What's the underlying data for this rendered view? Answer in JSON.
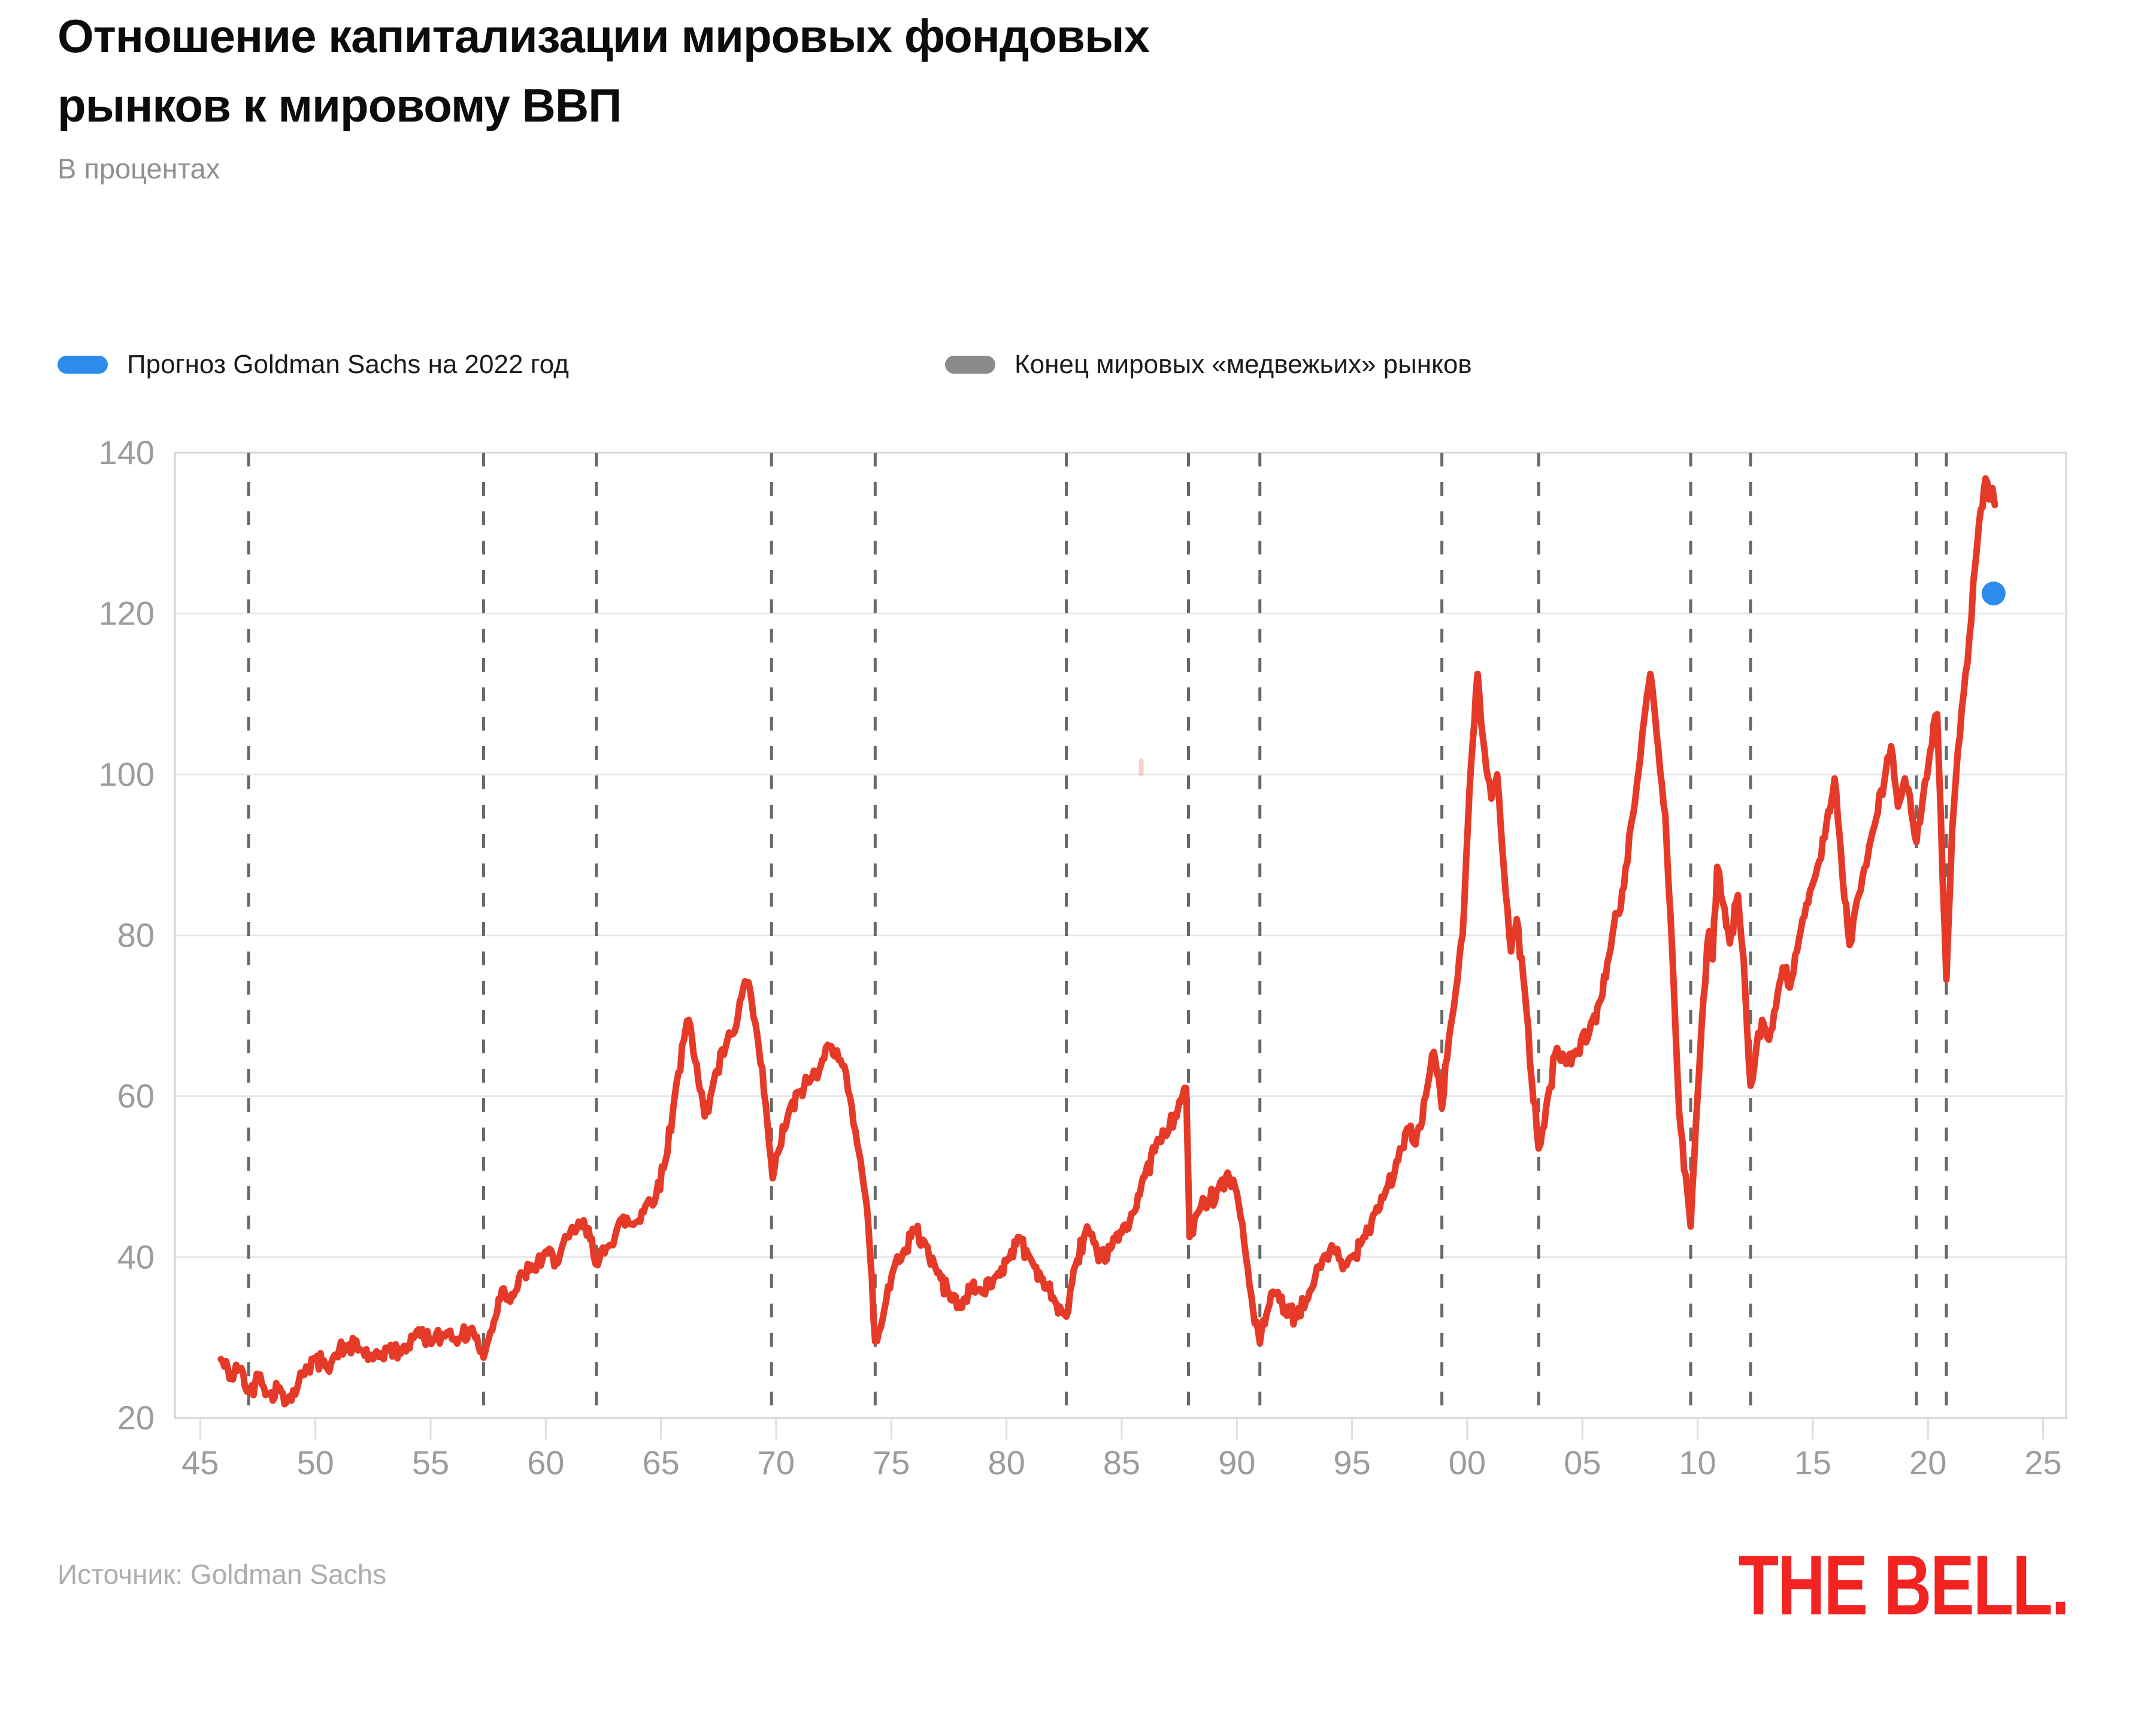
{
  "page": {
    "title_line1": "Отношение капитализации мировых фондовых",
    "title_line2": "рынков к мировому ВВП",
    "subtitle": "В процентах",
    "source": "Источник: Goldman Sachs",
    "logo_text": "THE BELL."
  },
  "legend": {
    "forecast": {
      "label": "Прогноз Goldman Sachs на 2022 год",
      "color": "#2d8ceb"
    },
    "bear": {
      "label": "Конец мировых «медвежьих» рынков",
      "color": "#8b8b8b"
    }
  },
  "colors": {
    "line": "#e63a29",
    "dot": "#2d8ceb",
    "dashed": "#696969",
    "grid": "#e8e8e8",
    "border": "#d6d6d6",
    "tick": "#dedede",
    "axis_text": "#9c9c9c",
    "title": "#0c0c0c",
    "subtitle": "#909090",
    "legend_text": "#1b1b1b",
    "source": "#adadad",
    "logo": "#f32322",
    "stray_mark": "#f3a9a2"
  },
  "chart_data": {
    "type": "line",
    "title": "Отношение капитализации мировых фондовых рынков к мировому ВВП",
    "units": "проценты",
    "grid": "horizontal only",
    "legend_position": "top",
    "y_ticks": [
      20,
      40,
      60,
      80,
      100,
      120,
      140
    ],
    "y_domain": [
      20,
      140
    ],
    "x_tick_years": [
      1945,
      1950,
      1955,
      1960,
      1965,
      1970,
      1975,
      1980,
      1985,
      1990,
      1995,
      2000,
      2005,
      2010,
      2015,
      2020,
      2025
    ],
    "x_tick_labels": [
      "45",
      "50",
      "55",
      "60",
      "65",
      "70",
      "75",
      "80",
      "85",
      "90",
      "95",
      "00",
      "05",
      "10",
      "15",
      "20",
      "25"
    ],
    "x_domain_years": [
      1943.9,
      2026.0
    ],
    "series_name": "Капитализация мировых фондовых рынков к мировому ВВП, %",
    "points": [
      [
        1945.9,
        27.3
      ],
      [
        1946.35,
        24.9
      ],
      [
        1946.7,
        26.2
      ],
      [
        1947.1,
        23.2
      ],
      [
        1947.6,
        25.4
      ],
      [
        1948.0,
        23.0
      ],
      [
        1948.45,
        23.8
      ],
      [
        1948.8,
        22.3
      ],
      [
        1949.2,
        23.6
      ],
      [
        1949.6,
        26.4
      ],
      [
        1950.0,
        27.3
      ],
      [
        1950.45,
        26.4
      ],
      [
        1950.9,
        27.9
      ],
      [
        1951.4,
        28.9
      ],
      [
        1952.0,
        28.4
      ],
      [
        1952.5,
        27.3
      ],
      [
        1953.2,
        28.7
      ],
      [
        1953.7,
        28.0
      ],
      [
        1954.4,
        30.8
      ],
      [
        1955.1,
        29.5
      ],
      [
        1955.7,
        30.6
      ],
      [
        1956.3,
        30.0
      ],
      [
        1956.8,
        31.2
      ],
      [
        1957.3,
        27.5
      ],
      [
        1957.75,
        32.0
      ],
      [
        1958.1,
        36.0
      ],
      [
        1958.6,
        35.2
      ],
      [
        1959.0,
        38.0
      ],
      [
        1959.5,
        38.4
      ],
      [
        1960.0,
        40.7
      ],
      [
        1960.45,
        39.2
      ],
      [
        1961.0,
        42.5
      ],
      [
        1961.5,
        44.2
      ],
      [
        1962.0,
        42.3
      ],
      [
        1962.25,
        39.0
      ],
      [
        1962.7,
        41.3
      ],
      [
        1963.3,
        44.8
      ],
      [
        1963.8,
        44.0
      ],
      [
        1964.4,
        46.7
      ],
      [
        1964.8,
        47.8
      ],
      [
        1965.2,
        52.0
      ],
      [
        1965.6,
        60.0
      ],
      [
        1966.0,
        67.0
      ],
      [
        1966.2,
        69.5
      ],
      [
        1966.55,
        64.0
      ],
      [
        1966.9,
        57.5
      ],
      [
        1967.3,
        62.0
      ],
      [
        1967.8,
        66.0
      ],
      [
        1968.2,
        68.0
      ],
      [
        1968.65,
        74.3
      ],
      [
        1968.95,
        71.5
      ],
      [
        1969.25,
        66.0
      ],
      [
        1969.55,
        59.0
      ],
      [
        1969.85,
        49.8
      ],
      [
        1970.15,
        53.5
      ],
      [
        1970.5,
        57.5
      ],
      [
        1971.0,
        60.5
      ],
      [
        1971.5,
        62.0
      ],
      [
        1972.0,
        64.5
      ],
      [
        1972.4,
        66.2
      ],
      [
        1972.8,
        64.5
      ],
      [
        1973.2,
        60.0
      ],
      [
        1973.6,
        53.0
      ],
      [
        1973.95,
        46.0
      ],
      [
        1974.3,
        29.5
      ],
      [
        1974.7,
        33.5
      ],
      [
        1975.1,
        38.5
      ],
      [
        1975.5,
        40.5
      ],
      [
        1976.0,
        43.5
      ],
      [
        1976.5,
        41.5
      ],
      [
        1977.0,
        38.0
      ],
      [
        1977.5,
        35.5
      ],
      [
        1978.0,
        33.7
      ],
      [
        1978.5,
        36.5
      ],
      [
        1979.0,
        35.5
      ],
      [
        1979.5,
        37.5
      ],
      [
        1980.0,
        39.5
      ],
      [
        1980.5,
        42.5
      ],
      [
        1981.0,
        40.0
      ],
      [
        1981.5,
        37.5
      ],
      [
        1982.1,
        34.5
      ],
      [
        1982.6,
        32.6
      ],
      [
        1983.0,
        39.0
      ],
      [
        1983.5,
        43.8
      ],
      [
        1984.0,
        39.5
      ],
      [
        1984.5,
        41.0
      ],
      [
        1985.0,
        43.0
      ],
      [
        1985.5,
        45.5
      ],
      [
        1986.0,
        50.0
      ],
      [
        1986.5,
        54.0
      ],
      [
        1987.0,
        55.5
      ],
      [
        1987.45,
        58.5
      ],
      [
        1987.8,
        61.0
      ],
      [
        1987.95,
        42.5
      ],
      [
        1988.3,
        45.5
      ],
      [
        1988.75,
        47.0
      ],
      [
        1989.2,
        48.5
      ],
      [
        1989.6,
        50.5
      ],
      [
        1990.0,
        48.0
      ],
      [
        1990.4,
        40.0
      ],
      [
        1990.7,
        33.5
      ],
      [
        1991.0,
        29.3
      ],
      [
        1991.35,
        33.5
      ],
      [
        1991.7,
        35.5
      ],
      [
        1992.1,
        33.0
      ],
      [
        1992.6,
        32.5
      ],
      [
        1993.0,
        34.5
      ],
      [
        1993.4,
        37.5
      ],
      [
        1993.8,
        40.2
      ],
      [
        1994.2,
        41.0
      ],
      [
        1994.6,
        38.5
      ],
      [
        1995.0,
        40.0
      ],
      [
        1995.5,
        42.5
      ],
      [
        1996.0,
        45.5
      ],
      [
        1996.5,
        48.5
      ],
      [
        1997.0,
        52.0
      ],
      [
        1997.4,
        56.0
      ],
      [
        1997.75,
        54.0
      ],
      [
        1998.2,
        60.0
      ],
      [
        1998.55,
        65.5
      ],
      [
        1998.9,
        58.5
      ],
      [
        1999.2,
        67.0
      ],
      [
        1999.5,
        73.0
      ],
      [
        1999.8,
        80.0
      ],
      [
        2000.1,
        98.0
      ],
      [
        2000.45,
        112.5
      ],
      [
        2000.75,
        103.0
      ],
      [
        2001.05,
        97.0
      ],
      [
        2001.3,
        100.0
      ],
      [
        2001.6,
        88.0
      ],
      [
        2001.9,
        78.0
      ],
      [
        2002.15,
        82.0
      ],
      [
        2002.5,
        73.0
      ],
      [
        2002.8,
        62.0
      ],
      [
        2003.1,
        53.5
      ],
      [
        2003.5,
        60.0
      ],
      [
        2003.9,
        66.0
      ],
      [
        2004.3,
        64.0
      ],
      [
        2004.8,
        65.5
      ],
      [
        2005.3,
        68.0
      ],
      [
        2005.8,
        72.0
      ],
      [
        2006.3,
        80.0
      ],
      [
        2006.8,
        86.0
      ],
      [
        2007.2,
        95.0
      ],
      [
        2007.6,
        105.0
      ],
      [
        2007.95,
        112.5
      ],
      [
        2008.3,
        103.0
      ],
      [
        2008.6,
        95.0
      ],
      [
        2008.9,
        78.0
      ],
      [
        2009.2,
        58.0
      ],
      [
        2009.7,
        43.8
      ],
      [
        2010.0,
        60.0
      ],
      [
        2010.25,
        72.0
      ],
      [
        2010.5,
        80.5
      ],
      [
        2010.65,
        77.0
      ],
      [
        2010.85,
        88.5
      ],
      [
        2011.1,
        84.0
      ],
      [
        2011.4,
        79.0
      ],
      [
        2011.75,
        85.0
      ],
      [
        2012.0,
        77.0
      ],
      [
        2012.3,
        61.3
      ],
      [
        2012.55,
        66.0
      ],
      [
        2012.8,
        69.5
      ],
      [
        2013.1,
        67.0
      ],
      [
        2013.4,
        71.0
      ],
      [
        2013.7,
        76.0
      ],
      [
        2014.0,
        73.5
      ],
      [
        2014.4,
        79.5
      ],
      [
        2014.8,
        84.0
      ],
      [
        2015.2,
        88.5
      ],
      [
        2015.6,
        94.0
      ],
      [
        2015.95,
        99.5
      ],
      [
        2016.3,
        87.0
      ],
      [
        2016.6,
        78.8
      ],
      [
        2017.0,
        85.0
      ],
      [
        2017.4,
        90.0
      ],
      [
        2017.75,
        94.5
      ],
      [
        2018.1,
        99.0
      ],
      [
        2018.4,
        103.5
      ],
      [
        2018.7,
        96.0
      ],
      [
        2019.0,
        99.5
      ],
      [
        2019.5,
        91.6
      ],
      [
        2019.8,
        97.5
      ],
      [
        2020.1,
        103.0
      ],
      [
        2020.4,
        107.5
      ],
      [
        2020.8,
        74.5
      ],
      [
        2021.05,
        93.0
      ],
      [
        2021.3,
        103.0
      ],
      [
        2021.55,
        110.0
      ],
      [
        2021.8,
        117.0
      ],
      [
        2022.05,
        126.0
      ],
      [
        2022.3,
        133.0
      ],
      [
        2022.5,
        136.8
      ],
      [
        2022.65,
        134.2
      ],
      [
        2022.8,
        135.6
      ],
      [
        2022.9,
        133.5
      ]
    ],
    "forecast_2022": {
      "year": 2022.85,
      "value": 122.5
    },
    "bear_market_end_years": [
      1947.1,
      1957.3,
      1962.2,
      1969.8,
      1974.3,
      1982.6,
      1987.9,
      1991.0,
      1998.9,
      2003.1,
      2009.7,
      2012.3,
      2019.5,
      2020.8
    ],
    "stray_mark": {
      "year": 1985.85,
      "value": 100.9
    }
  }
}
